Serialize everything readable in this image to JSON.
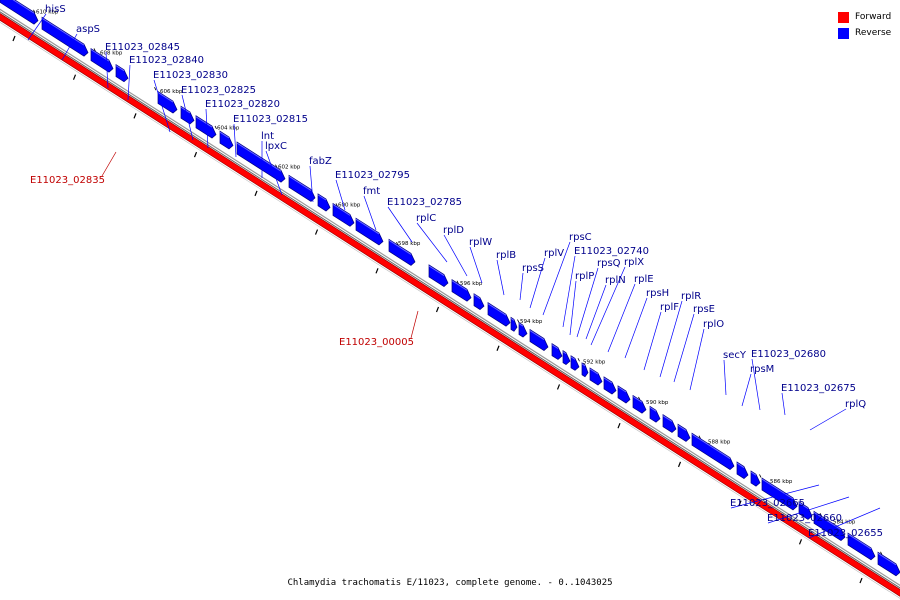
{
  "colors": {
    "forward": "#ff0000",
    "reverse": "#0000ff",
    "forward_label": "#c00000",
    "reverse_label": "#00008b"
  },
  "legend": {
    "forward": "Forward",
    "reverse": "Reverse"
  },
  "caption": "Chlamydia trachomatis E/11023, complete genome. - 0..1043025",
  "forward_genes": [
    "E11023_02835",
    "E11023_00005"
  ],
  "reverse_genes": [
    "hisS",
    "aspS",
    "E11023_02845",
    "E11023_02840",
    "E11023_02830",
    "E11023_02825",
    "E11023_02820",
    "E11023_02815",
    "lnt",
    "lpxC",
    "fabZ",
    "E11023_02795",
    "fmt",
    "E11023_02785",
    "rplC",
    "rplD",
    "rplW",
    "rplB",
    "rplV",
    "rpsS",
    "rpsC",
    "E11023_02740",
    "rplP",
    "rpsQ",
    "rplX",
    "rplN",
    "rplE",
    "rpsH",
    "rplF",
    "rplR",
    "rpsE",
    "rplO",
    "secY",
    "rpsM",
    "E11023_02680",
    "E11023_02675",
    "rplQ",
    "E11023_02665",
    "E11023_02660",
    "E11023_02655"
  ],
  "scale_labels": [
    "610 kbp",
    "608 kbp",
    "606 kbp",
    "604 kbp",
    "602 kbp",
    "600 kbp",
    "598 kbp",
    "596 kbp",
    "594 kbp",
    "592 kbp",
    "590 kbp",
    "588 kbp",
    "586 kbp",
    "584 kbp"
  ]
}
